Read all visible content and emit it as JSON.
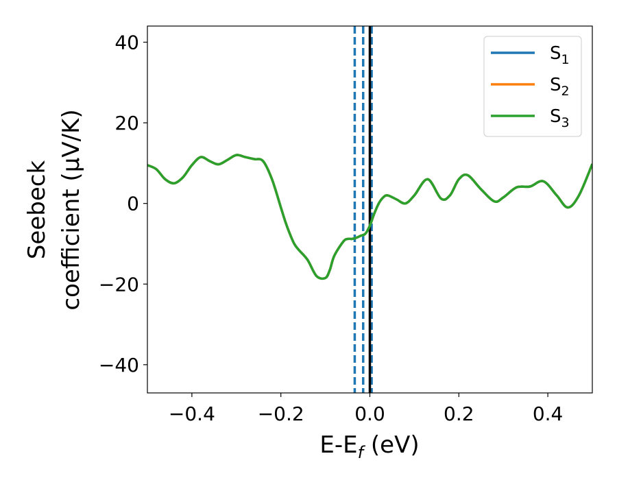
{
  "chart_data": {
    "type": "line",
    "xlabel": "E-E",
    "xlabel_sub": "f",
    "xlabel_unit": " (eV)",
    "ylabel_line1": "Seebeck",
    "ylabel_line2": "coefficient  (μV/K)",
    "xlim": [
      -0.5,
      0.5
    ],
    "ylim": [
      -47,
      44
    ],
    "x_ticks": [
      -0.4,
      -0.2,
      0.0,
      0.2,
      0.4
    ],
    "x_tick_labels": [
      "−0.4",
      "−0.2",
      "0.0",
      "0.2",
      "0.4"
    ],
    "y_ticks": [
      -40,
      -20,
      0,
      20,
      40
    ],
    "y_tick_labels": [
      "−40",
      "−20",
      "0",
      "20",
      "40"
    ],
    "grid": false,
    "legend_position": "top-right",
    "series": [
      {
        "name": "S",
        "name_sub": "1",
        "color": "#1f77b4",
        "x": [
          -0.5,
          -0.48,
          -0.46,
          -0.44,
          -0.42,
          -0.4,
          -0.38,
          -0.36,
          -0.34,
          -0.32,
          -0.3,
          -0.28,
          -0.26,
          -0.24,
          -0.22,
          -0.2,
          -0.19,
          -0.18,
          -0.17,
          -0.16,
          -0.14,
          -0.12,
          -0.1,
          -0.09,
          -0.08,
          -0.06,
          -0.05,
          -0.04,
          -0.03,
          -0.02,
          -0.01,
          0.0,
          0.01,
          0.02,
          0.03,
          0.04,
          0.06,
          0.08,
          0.1,
          0.13,
          0.16,
          0.18,
          0.2,
          0.22,
          0.25,
          0.28,
          0.3,
          0.33,
          0.36,
          0.39,
          0.42,
          0.445,
          0.47,
          0.5
        ],
        "y": [
          9.5,
          8.5,
          6.0,
          5.0,
          6.5,
          9.5,
          11.5,
          10.5,
          9.7,
          10.8,
          12.0,
          11.5,
          11.0,
          10.5,
          6.0,
          -1.0,
          -4.5,
          -7.5,
          -10.0,
          -11.5,
          -14.0,
          -18.0,
          -18.5,
          -16.5,
          -13.0,
          -9.5,
          -8.8,
          -8.8,
          -8.5,
          -8.0,
          -7.5,
          -5.5,
          -2.5,
          0.0,
          1.5,
          2.0,
          1.0,
          0.0,
          2.0,
          6.0,
          1.2,
          2.0,
          6.0,
          7.0,
          3.5,
          0.5,
          1.5,
          4.0,
          4.2,
          5.5,
          2.0,
          -1.0,
          2.0,
          9.8
        ]
      },
      {
        "name": "S",
        "name_sub": "2",
        "color": "#ff7f0e",
        "x": [
          -0.5,
          -0.48,
          -0.46,
          -0.44,
          -0.42,
          -0.4,
          -0.38,
          -0.36,
          -0.34,
          -0.32,
          -0.3,
          -0.28,
          -0.26,
          -0.24,
          -0.22,
          -0.2,
          -0.19,
          -0.18,
          -0.17,
          -0.16,
          -0.14,
          -0.12,
          -0.1,
          -0.09,
          -0.08,
          -0.06,
          -0.05,
          -0.04,
          -0.03,
          -0.02,
          -0.01,
          0.0,
          0.01,
          0.02,
          0.03,
          0.04,
          0.06,
          0.08,
          0.1,
          0.13,
          0.16,
          0.18,
          0.2,
          0.22,
          0.25,
          0.28,
          0.3,
          0.33,
          0.36,
          0.39,
          0.42,
          0.445,
          0.47,
          0.5
        ],
        "y": [
          9.5,
          8.5,
          6.0,
          5.0,
          6.5,
          9.5,
          11.5,
          10.5,
          9.7,
          10.8,
          12.0,
          11.5,
          11.0,
          10.5,
          6.0,
          -1.0,
          -4.5,
          -7.5,
          -10.0,
          -11.5,
          -14.0,
          -18.0,
          -18.5,
          -16.5,
          -13.0,
          -9.5,
          -8.8,
          -8.8,
          -8.5,
          -8.0,
          -7.5,
          -5.5,
          -2.5,
          0.0,
          1.5,
          2.0,
          1.0,
          0.0,
          2.0,
          6.0,
          1.2,
          2.0,
          6.0,
          7.0,
          3.5,
          0.5,
          1.5,
          4.0,
          4.2,
          5.5,
          2.0,
          -1.0,
          2.0,
          9.8
        ]
      },
      {
        "name": "S",
        "name_sub": "3",
        "color": "#2ca02c",
        "x": [
          -0.5,
          -0.48,
          -0.46,
          -0.44,
          -0.42,
          -0.4,
          -0.38,
          -0.36,
          -0.34,
          -0.32,
          -0.3,
          -0.28,
          -0.26,
          -0.24,
          -0.22,
          -0.2,
          -0.19,
          -0.18,
          -0.17,
          -0.16,
          -0.14,
          -0.12,
          -0.1,
          -0.09,
          -0.08,
          -0.06,
          -0.05,
          -0.04,
          -0.03,
          -0.02,
          -0.01,
          0.0,
          0.01,
          0.02,
          0.03,
          0.04,
          0.06,
          0.08,
          0.1,
          0.13,
          0.16,
          0.18,
          0.2,
          0.22,
          0.25,
          0.28,
          0.3,
          0.33,
          0.36,
          0.39,
          0.42,
          0.445,
          0.47,
          0.5
        ],
        "y": [
          9.5,
          8.5,
          6.0,
          5.0,
          6.5,
          9.5,
          11.5,
          10.5,
          9.7,
          10.8,
          12.0,
          11.5,
          11.0,
          10.5,
          6.0,
          -1.0,
          -4.5,
          -7.5,
          -10.0,
          -11.5,
          -14.0,
          -18.0,
          -18.5,
          -16.5,
          -13.0,
          -9.5,
          -8.8,
          -8.8,
          -8.5,
          -8.0,
          -7.5,
          -5.5,
          -2.5,
          0.0,
          1.5,
          2.0,
          1.0,
          0.0,
          2.0,
          6.0,
          1.2,
          2.0,
          6.0,
          7.0,
          3.5,
          0.5,
          1.5,
          4.0,
          4.2,
          5.5,
          2.0,
          -1.0,
          2.0,
          9.8
        ]
      }
    ],
    "vlines": [
      {
        "x": -0.034,
        "style": "dashed",
        "color": "#1f77b4"
      },
      {
        "x": -0.015,
        "style": "dashed",
        "color": "#1f77b4"
      },
      {
        "x": 0.004,
        "style": "dashed",
        "color": "#1f77b4"
      },
      {
        "x": 0.0,
        "style": "solid",
        "color": "#000000"
      }
    ]
  }
}
